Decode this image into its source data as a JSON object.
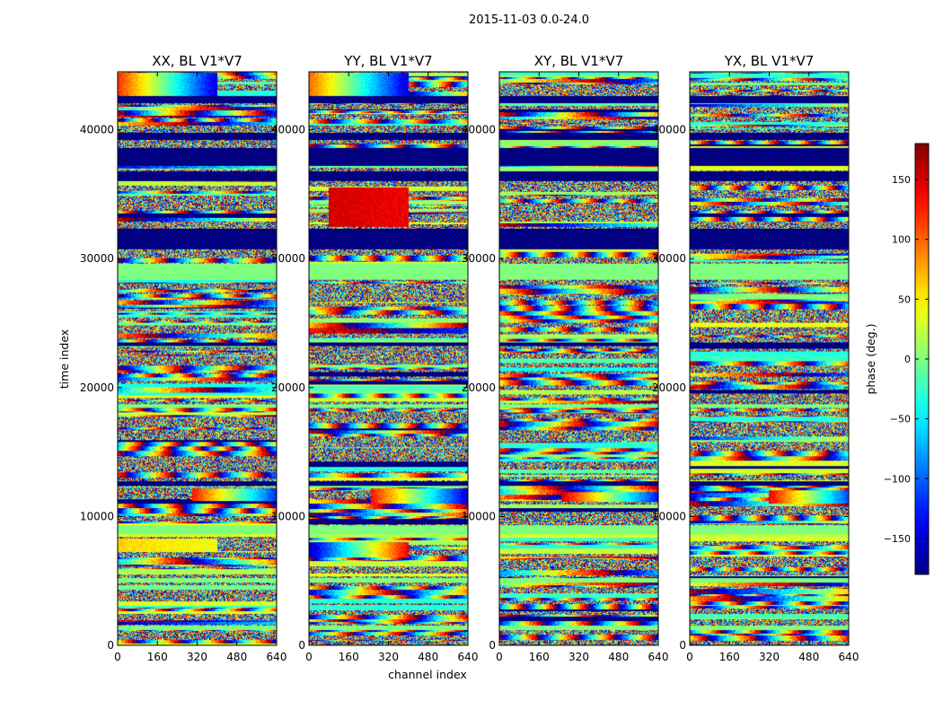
{
  "chart_data": {
    "type": "heatmap",
    "suptitle": "2015-11-03 0.0-24.0",
    "xlabel": "channel index",
    "ylabel": "time index",
    "xlim": [
      0,
      640
    ],
    "ylim": [
      0,
      44500
    ],
    "x_ticks": [
      0,
      160,
      320,
      480,
      640
    ],
    "x_tick_labels": [
      "0",
      "160",
      "320",
      "480",
      "640"
    ],
    "y_ticks": [
      0,
      10000,
      20000,
      30000,
      40000
    ],
    "y_tick_labels": [
      "0",
      "10000",
      "20000",
      "30000",
      "40000"
    ],
    "colorbar": {
      "label": "phase (deg.)",
      "colormap": "jet",
      "range": [
        -180,
        180
      ],
      "ticks": [
        -150,
        -100,
        -50,
        0,
        50,
        100,
        150
      ],
      "tick_labels": [
        "−150",
        "−100",
        "−50",
        "0",
        "50",
        "100",
        "150"
      ]
    },
    "panels": [
      {
        "title": "XX, BL V1*V7",
        "seed": 11,
        "bands": [
          {
            "y": [
              1200,
              1500
            ],
            "value": 0
          },
          {
            "y": [
              4900,
              5200
            ],
            "value": 0
          },
          {
            "y": [
              8600,
              9300
            ],
            "value": 0
          },
          {
            "y": [
              12400,
              12700
            ],
            "value": -180
          },
          {
            "y": [
              18400,
              18700
            ],
            "value": 0
          },
          {
            "y": [
              23200,
              23500
            ],
            "value": -180
          },
          {
            "y": [
              28400,
              29600
            ],
            "value": 0
          },
          {
            "y": [
              30700,
              32300
            ],
            "value": -180
          },
          {
            "y": [
              36000,
              36800
            ],
            "value": -180
          },
          {
            "y": [
              37200,
              38600
            ],
            "value": -180
          },
          {
            "y": [
              39200,
              39800
            ],
            "value": -180
          },
          {
            "y": [
              42100,
              42600
            ],
            "value": -180
          }
        ],
        "gradients": [
          {
            "y": [
              42600,
              44400
            ],
            "x": [
              0,
              400
            ],
            "from": 120,
            "to": -150
          },
          {
            "y": [
              11200,
              12200
            ],
            "x": [
              300,
              640
            ],
            "from": 130,
            "to": -120
          },
          {
            "y": [
              7200,
              8300
            ],
            "x": [
              0,
              400
            ],
            "from": 60,
            "to": 40
          }
        ]
      },
      {
        "title": "YY, BL V1*V7",
        "seed": 23,
        "bands": [
          {
            "y": [
              1200,
              1500
            ],
            "value": 0
          },
          {
            "y": [
              4900,
              5200
            ],
            "value": 0
          },
          {
            "y": [
              8600,
              9300
            ],
            "value": 0
          },
          {
            "y": [
              12400,
              12700
            ],
            "value": -180
          },
          {
            "y": [
              18400,
              18700
            ],
            "value": 0
          },
          {
            "y": [
              23200,
              23500
            ],
            "value": -180
          },
          {
            "y": [
              28400,
              29600
            ],
            "value": 0
          },
          {
            "y": [
              30700,
              32300
            ],
            "value": -180
          },
          {
            "y": [
              36000,
              36800
            ],
            "value": -180
          },
          {
            "y": [
              37200,
              38600
            ],
            "value": -180
          },
          {
            "y": [
              39200,
              39800
            ],
            "value": -180
          },
          {
            "y": [
              42100,
              42600
            ],
            "value": -180
          }
        ],
        "gradients": [
          {
            "y": [
              42600,
              44400
            ],
            "x": [
              0,
              400
            ],
            "from": 100,
            "to": -150
          },
          {
            "y": [
              11000,
              12200
            ],
            "x": [
              250,
              640
            ],
            "from": 130,
            "to": -150
          },
          {
            "y": [
              6800,
              8000
            ],
            "x": [
              0,
              400
            ],
            "from": -160,
            "to": 140
          },
          {
            "y": [
              32500,
              35500
            ],
            "x": [
              80,
              400
            ],
            "from": 150,
            "to": 140
          }
        ]
      },
      {
        "title": "XY, BL V1*V7",
        "seed": 37,
        "bands": [
          {
            "y": [
              1200,
              1500
            ],
            "value": 0
          },
          {
            "y": [
              4900,
              5200
            ],
            "value": 0
          },
          {
            "y": [
              8600,
              9300
            ],
            "value": 0
          },
          {
            "y": [
              12400,
              12700
            ],
            "value": -180
          },
          {
            "y": [
              18400,
              18700
            ],
            "value": 0
          },
          {
            "y": [
              23200,
              23500
            ],
            "value": -180
          },
          {
            "y": [
              28400,
              29600
            ],
            "value": 0
          },
          {
            "y": [
              30700,
              32300
            ],
            "value": -180
          },
          {
            "y": [
              36000,
              36800
            ],
            "value": -180
          },
          {
            "y": [
              37200,
              38600
            ],
            "value": -180
          },
          {
            "y": [
              39200,
              39800
            ],
            "value": -180
          },
          {
            "y": [
              42100,
              42600
            ],
            "value": -180
          }
        ],
        "gradients": [
          {
            "y": [
              11100,
              11900
            ],
            "x": [
              250,
              640
            ],
            "from": 150,
            "to": -130
          }
        ]
      },
      {
        "title": "YX, BL V1*V7",
        "seed": 53,
        "bands": [
          {
            "y": [
              1200,
              1500
            ],
            "value": 0
          },
          {
            "y": [
              4900,
              5200
            ],
            "value": 0
          },
          {
            "y": [
              8600,
              9300
            ],
            "value": 0
          },
          {
            "y": [
              12400,
              12700
            ],
            "value": -180
          },
          {
            "y": [
              18400,
              18700
            ],
            "value": 0
          },
          {
            "y": [
              23200,
              23500
            ],
            "value": -180
          },
          {
            "y": [
              28400,
              29600
            ],
            "value": 0
          },
          {
            "y": [
              30700,
              32300
            ],
            "value": -180
          },
          {
            "y": [
              36000,
              36800
            ],
            "value": -180
          },
          {
            "y": [
              37200,
              38600
            ],
            "value": -180
          },
          {
            "y": [
              39200,
              39800
            ],
            "value": -180
          },
          {
            "y": [
              42100,
              42600
            ],
            "value": -180
          }
        ],
        "gradients": [
          {
            "y": [
              11000,
              12000
            ],
            "x": [
              320,
              640
            ],
            "from": 140,
            "to": -110
          }
        ]
      }
    ]
  }
}
